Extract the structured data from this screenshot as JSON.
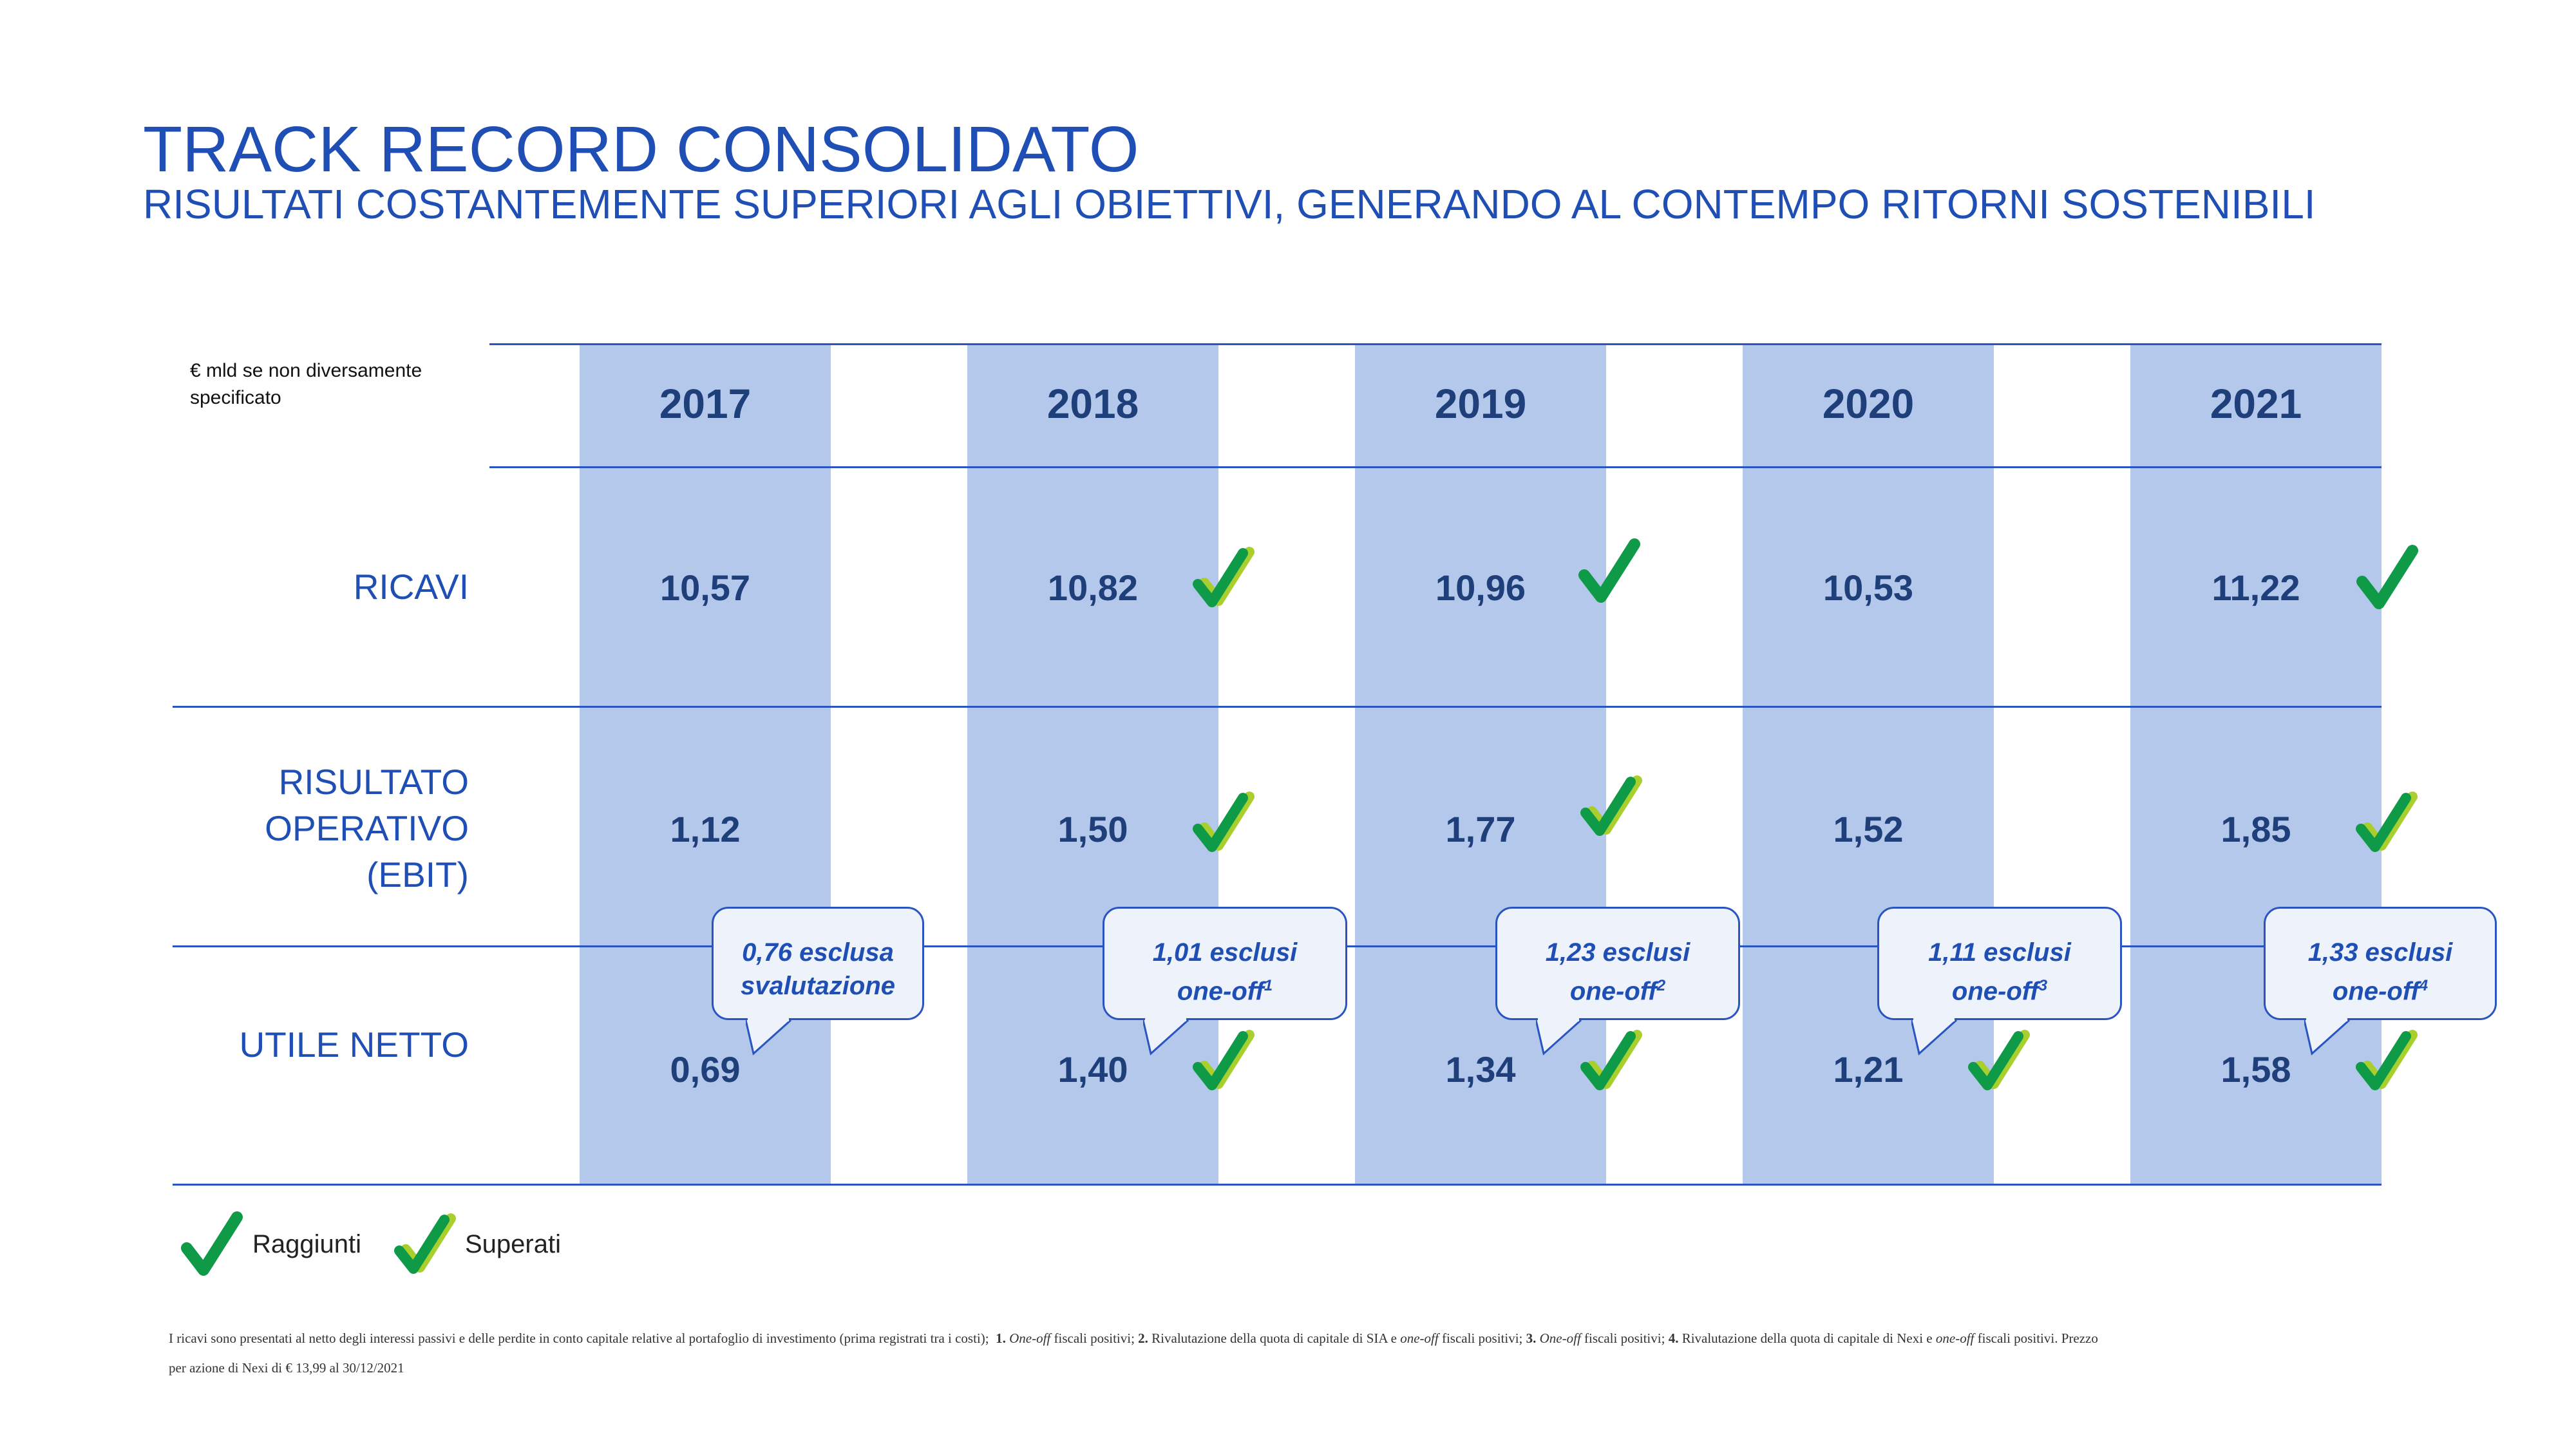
{
  "title": "TRACK RECORD CONSOLIDATO",
  "subtitle": "RISULTATI COSTANTEMENTE SUPERIORI AGLI OBIETTIVI, GENERANDO AL CONTEMPO RITORNI SOSTENIBILI",
  "unit_note": "€ mld se non diversamente specificato",
  "years": [
    "2017",
    "2018",
    "2019",
    "2020",
    "2021"
  ],
  "rows": {
    "ricavi": {
      "label": "RICAVI",
      "values": [
        "10,57",
        "10,82",
        "10,96",
        "10,53",
        "11,22"
      ],
      "status": [
        "none",
        "superati",
        "raggiunti",
        "none",
        "raggiunti"
      ]
    },
    "ebit": {
      "label_lines": [
        "RISULTATO",
        "OPERATIVO",
        "(EBIT)"
      ],
      "values": [
        "1,12",
        "1,50",
        "1,77",
        "1,52",
        "1,85"
      ],
      "status": [
        "none",
        "superati",
        "superati",
        "none",
        "superati"
      ]
    },
    "utile": {
      "label": "UTILE NETTO",
      "values": [
        "0,69",
        "1,40",
        "1,34",
        "1,21",
        "1,58"
      ],
      "status": [
        "none",
        "superati",
        "superati",
        "superati",
        "superati"
      ]
    }
  },
  "callouts": [
    {
      "line1": "0,76 esclusa",
      "line2": "svalutazione",
      "sup": ""
    },
    {
      "line1": "1,01 esclusi",
      "line2": "one-off",
      "sup": "1"
    },
    {
      "line1": "1,23 esclusi",
      "line2": "one-off",
      "sup": "2"
    },
    {
      "line1": "1,11 esclusi",
      "line2": "one-off",
      "sup": "3"
    },
    {
      "line1": "1,33 esclusi",
      "line2": "one-off",
      "sup": "4"
    }
  ],
  "legend": {
    "raggiunti": "Raggiunti",
    "superati": "Superati"
  },
  "footnote": {
    "intro": "I ricavi sono presentati al netto degli interessi passivi e delle perdite in conto capitale relative al portafoglio di investimento (prima registrati tra i costi);",
    "n1": "1.",
    "oneoff": "One-off",
    "t1": "fiscali positivi;",
    "n2": "2.",
    "t2a": "Rivalutazione della quota di capitale di SIA e",
    "t2b": "fiscali positivi;",
    "n3": "3.",
    "t3": "fiscali positivi;",
    "n4": "4.",
    "t4a": "Rivalutazione della quota di capitale di Nexi e",
    "oneoff_lc": "one-off",
    "t4b": "fiscali positivi. Prezzo per azione di Nexi di € 13,99 al 30/12/2021"
  },
  "colors": {
    "title": "#1f4fb5",
    "column": "#b3c8ea",
    "line": "#2a55c0",
    "check_dark": "#0e9a47",
    "check_light": "#a8cf2e"
  }
}
